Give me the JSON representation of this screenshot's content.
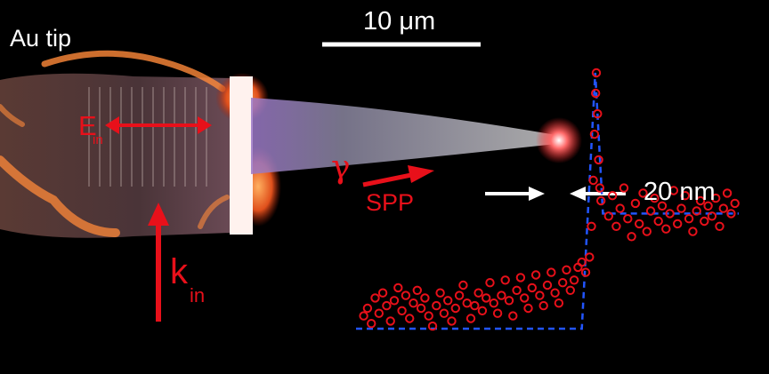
{
  "labels": {
    "tip": "Au tip",
    "scale": "10 μm",
    "resolution": "20 nm",
    "spp": "SPP",
    "field": "E",
    "field_sub": "in",
    "wavevector": "k",
    "wavevector_sub": "in",
    "grating_symbol": "γ"
  },
  "colors": {
    "background": "#000000",
    "accent_red": "#e8101a",
    "trace_blue": "#2255ff",
    "text_white": "#ffffff"
  },
  "icons": [
    "polarization-double-arrow",
    "incident-arrow",
    "spp-arrow",
    "resolution-arrow-left",
    "resolution-arrow-right",
    "scale-bar"
  ],
  "profile": {
    "step_profile_y": [
      0.0,
      0.0,
      1.0,
      0.45,
      0.45
    ],
    "points": [
      [
        0.02,
        0.05
      ],
      [
        0.03,
        0.08
      ],
      [
        0.04,
        0.02
      ],
      [
        0.05,
        0.12
      ],
      [
        0.06,
        0.06
      ],
      [
        0.07,
        0.14
      ],
      [
        0.08,
        0.09
      ],
      [
        0.09,
        0.03
      ],
      [
        0.1,
        0.11
      ],
      [
        0.11,
        0.16
      ],
      [
        0.12,
        0.07
      ],
      [
        0.13,
        0.13
      ],
      [
        0.14,
        0.04
      ],
      [
        0.15,
        0.1
      ],
      [
        0.16,
        0.15
      ],
      [
        0.17,
        0.08
      ],
      [
        0.18,
        0.12
      ],
      [
        0.19,
        0.05
      ],
      [
        0.2,
        0.01
      ],
      [
        0.21,
        0.09
      ],
      [
        0.22,
        0.14
      ],
      [
        0.23,
        0.06
      ],
      [
        0.24,
        0.11
      ],
      [
        0.25,
        0.03
      ],
      [
        0.26,
        0.08
      ],
      [
        0.27,
        0.13
      ],
      [
        0.28,
        0.17
      ],
      [
        0.29,
        0.1
      ],
      [
        0.3,
        0.04
      ],
      [
        0.31,
        0.09
      ],
      [
        0.32,
        0.14
      ],
      [
        0.33,
        0.07
      ],
      [
        0.34,
        0.12
      ],
      [
        0.35,
        0.18
      ],
      [
        0.36,
        0.1
      ],
      [
        0.37,
        0.06
      ],
      [
        0.38,
        0.13
      ],
      [
        0.39,
        0.19
      ],
      [
        0.4,
        0.11
      ],
      [
        0.41,
        0.05
      ],
      [
        0.42,
        0.15
      ],
      [
        0.43,
        0.2
      ],
      [
        0.44,
        0.12
      ],
      [
        0.45,
        0.08
      ],
      [
        0.46,
        0.16
      ],
      [
        0.47,
        0.21
      ],
      [
        0.48,
        0.13
      ],
      [
        0.49,
        0.09
      ],
      [
        0.5,
        0.17
      ],
      [
        0.51,
        0.22
      ],
      [
        0.52,
        0.14
      ],
      [
        0.53,
        0.1
      ],
      [
        0.54,
        0.18
      ],
      [
        0.55,
        0.23
      ],
      [
        0.56,
        0.15
      ],
      [
        0.57,
        0.19
      ],
      [
        0.58,
        0.24
      ],
      [
        0.59,
        0.26
      ],
      [
        0.6,
        0.22
      ],
      [
        0.61,
        0.28
      ],
      [
        0.615,
        0.4
      ],
      [
        0.62,
        0.58
      ],
      [
        0.623,
        0.76
      ],
      [
        0.626,
        0.92
      ],
      [
        0.628,
        1.0
      ],
      [
        0.631,
        0.84
      ],
      [
        0.634,
        0.66
      ],
      [
        0.637,
        0.55
      ],
      [
        0.64,
        0.5
      ],
      [
        0.66,
        0.44
      ],
      [
        0.67,
        0.52
      ],
      [
        0.68,
        0.4
      ],
      [
        0.69,
        0.47
      ],
      [
        0.7,
        0.55
      ],
      [
        0.71,
        0.43
      ],
      [
        0.72,
        0.36
      ],
      [
        0.73,
        0.49
      ],
      [
        0.74,
        0.41
      ],
      [
        0.75,
        0.53
      ],
      [
        0.76,
        0.38
      ],
      [
        0.77,
        0.46
      ],
      [
        0.78,
        0.51
      ],
      [
        0.79,
        0.42
      ],
      [
        0.8,
        0.48
      ],
      [
        0.81,
        0.39
      ],
      [
        0.82,
        0.45
      ],
      [
        0.83,
        0.54
      ],
      [
        0.84,
        0.41
      ],
      [
        0.85,
        0.47
      ],
      [
        0.86,
        0.52
      ],
      [
        0.87,
        0.43
      ],
      [
        0.88,
        0.38
      ],
      [
        0.89,
        0.46
      ],
      [
        0.9,
        0.5
      ],
      [
        0.91,
        0.42
      ],
      [
        0.92,
        0.48
      ],
      [
        0.93,
        0.44
      ],
      [
        0.94,
        0.51
      ],
      [
        0.95,
        0.4
      ],
      [
        0.96,
        0.47
      ],
      [
        0.97,
        0.53
      ],
      [
        0.98,
        0.45
      ],
      [
        0.99,
        0.49
      ]
    ]
  }
}
